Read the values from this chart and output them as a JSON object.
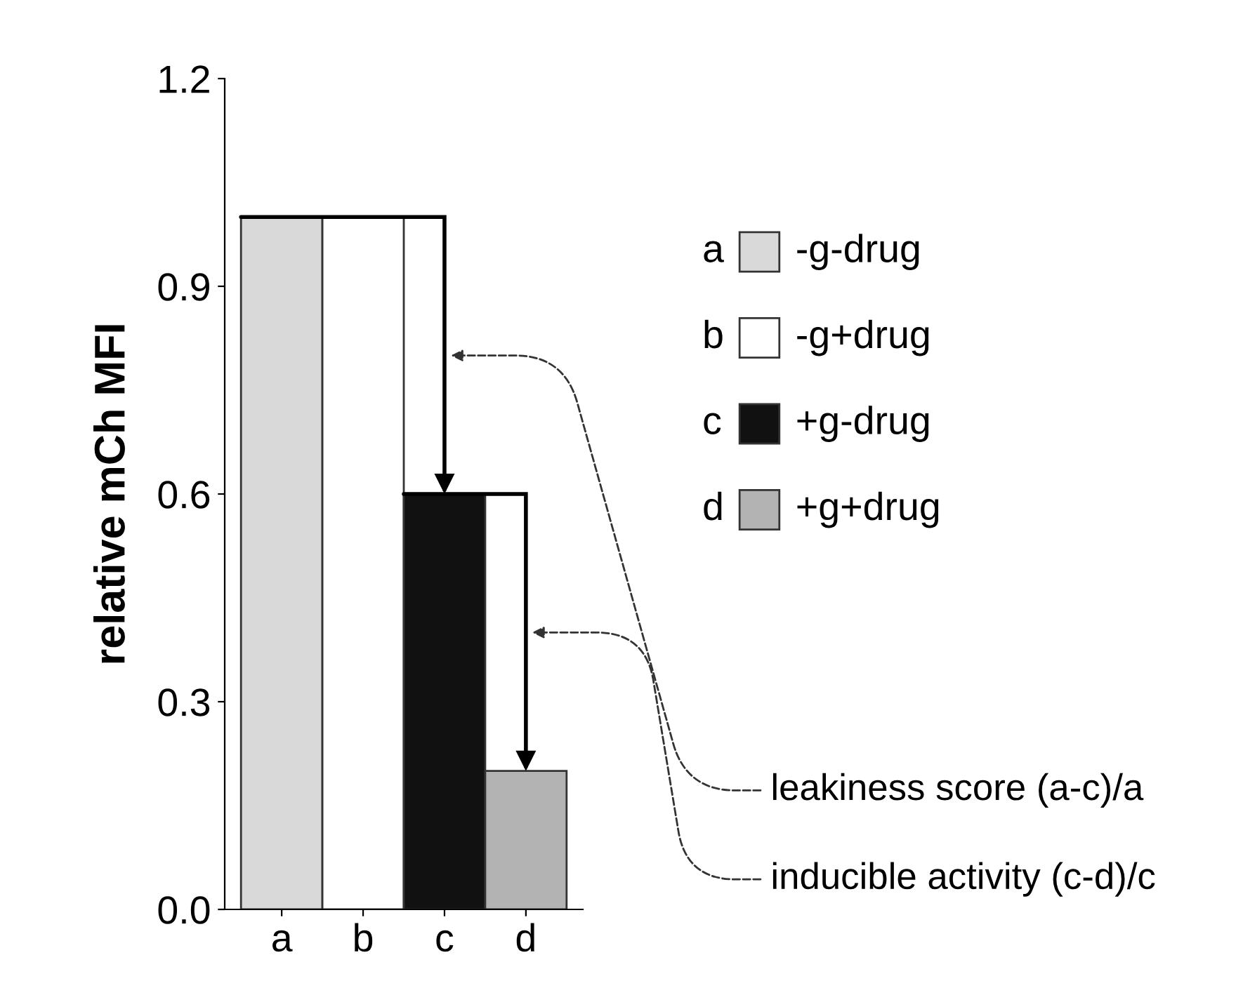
{
  "chart_data": {
    "type": "bar",
    "ylabel": "relative mCh MFI",
    "categories": [
      "a",
      "b",
      "c",
      "d"
    ],
    "series": [
      {
        "name": "-g-drug",
        "color": "#d9d9d9",
        "values": [
          1.0,
          null,
          null,
          null
        ]
      },
      {
        "name": "-g+drug",
        "color": "#ffffff",
        "values": [
          null,
          1.0,
          null,
          null
        ]
      },
      {
        "name": "+g-drug",
        "color": "#111111",
        "values": [
          null,
          null,
          0.6,
          null
        ]
      },
      {
        "name": "+g+drug",
        "color": "#b3b3b3",
        "values": [
          null,
          null,
          null,
          0.2
        ]
      }
    ],
    "ylim": [
      0,
      1.2
    ],
    "yticks": [
      {
        "value": 0,
        "label": "0.0"
      },
      {
        "value": 0.3,
        "label": "0.3"
      },
      {
        "value": 0.6,
        "label": "0.6"
      },
      {
        "value": 0.9,
        "label": "0.9"
      },
      {
        "value": 1.2,
        "label": "1.2"
      }
    ],
    "annotations": [
      "leakiness score (a-c)/a",
      "inducible activity (c-d)/c"
    ],
    "legend": "right",
    "grid": false
  }
}
